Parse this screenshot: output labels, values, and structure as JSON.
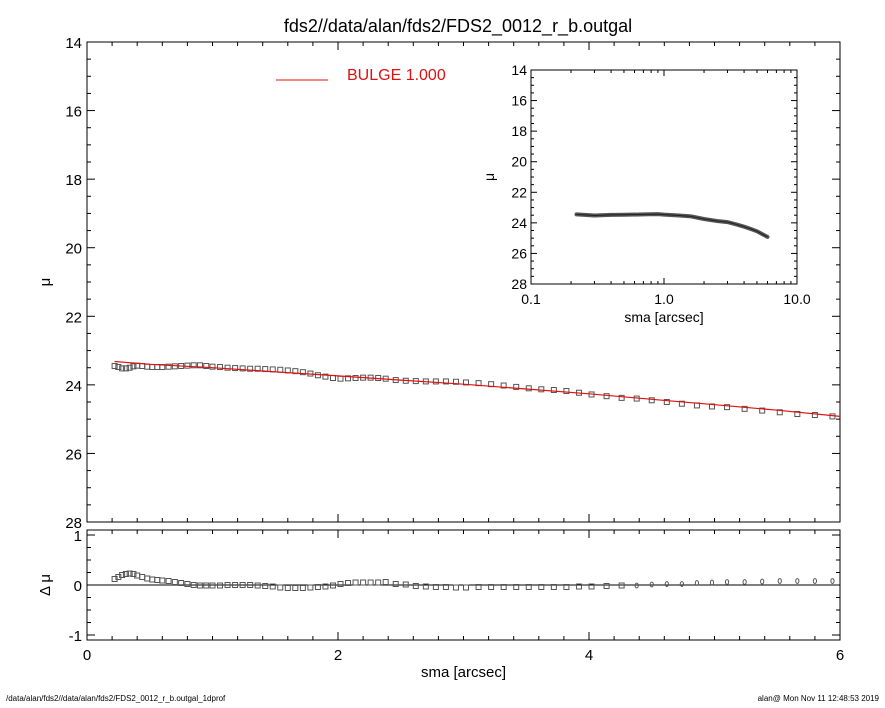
{
  "title": "fds2//data/alan/fds2/FDS2_0012_r_b.outgal",
  "footer": {
    "left": "/data/alan/fds2//data/alan/fds2/FDS2_0012_r_b.outgal_1dprof",
    "right": "alan@  Mon Nov 11 12:48:53 2019"
  },
  "colors": {
    "model": "#e01010",
    "data": "#555555",
    "axis": "#000000"
  },
  "chart_data": [
    {
      "id": "main",
      "type": "scatter",
      "ylabel": "μ",
      "xlim": [
        0,
        6
      ],
      "ylim": [
        28,
        14
      ],
      "y_inverted": true,
      "yticks": [
        14,
        16,
        18,
        20,
        22,
        24,
        26,
        28
      ],
      "xticks": [
        0,
        2,
        4,
        6
      ],
      "legend": {
        "label": "BULGE  1.000",
        "position": "top-left"
      },
      "series": [
        {
          "name": "data",
          "marker": "square",
          "x": [
            0.22,
            0.25,
            0.28,
            0.31,
            0.34,
            0.37,
            0.4,
            0.44,
            0.48,
            0.52,
            0.56,
            0.6,
            0.65,
            0.7,
            0.75,
            0.8,
            0.85,
            0.9,
            0.95,
            1.0,
            1.06,
            1.12,
            1.18,
            1.24,
            1.3,
            1.36,
            1.42,
            1.48,
            1.54,
            1.6,
            1.66,
            1.72,
            1.78,
            1.84,
            1.9,
            1.96,
            2.02,
            2.08,
            2.14,
            2.2,
            2.26,
            2.32,
            2.38,
            2.46,
            2.54,
            2.62,
            2.7,
            2.78,
            2.86,
            2.94,
            3.02,
            3.12,
            3.22,
            3.32,
            3.42,
            3.52,
            3.62,
            3.72,
            3.82,
            3.92,
            4.02,
            4.14,
            4.26,
            4.38,
            4.5,
            4.62,
            4.74,
            4.86,
            4.98,
            5.1,
            5.24,
            5.38,
            5.52,
            5.66,
            5.8,
            5.94
          ],
          "values": [
            23.45,
            23.48,
            23.52,
            23.52,
            23.5,
            23.46,
            23.44,
            23.45,
            23.47,
            23.48,
            23.48,
            23.48,
            23.47,
            23.46,
            23.45,
            23.44,
            23.43,
            23.43,
            23.45,
            23.47,
            23.48,
            23.5,
            23.51,
            23.52,
            23.53,
            23.53,
            23.54,
            23.55,
            23.56,
            23.58,
            23.6,
            23.63,
            23.67,
            23.72,
            23.76,
            23.8,
            23.82,
            23.81,
            23.8,
            23.79,
            23.79,
            23.8,
            23.82,
            23.86,
            23.88,
            23.89,
            23.9,
            23.9,
            23.9,
            23.91,
            23.93,
            23.95,
            23.98,
            24.02,
            24.06,
            24.1,
            24.13,
            24.15,
            24.18,
            24.23,
            24.28,
            24.33,
            24.38,
            24.4,
            24.45,
            24.5,
            24.55,
            24.6,
            24.63,
            24.65,
            24.7,
            24.75,
            24.8,
            24.85,
            24.88,
            24.92
          ]
        },
        {
          "name": "BULGE  1.000",
          "marker": "line",
          "x": [
            0.22,
            0.5,
            1.0,
            1.5,
            2.0,
            2.5,
            3.0,
            3.5,
            4.0,
            4.5,
            5.0,
            5.5,
            6.0
          ],
          "values": [
            23.32,
            23.4,
            23.5,
            23.62,
            23.74,
            23.86,
            23.98,
            24.12,
            24.26,
            24.42,
            24.58,
            24.74,
            24.92
          ]
        }
      ]
    },
    {
      "id": "inset",
      "type": "scatter",
      "xscale": "log",
      "xlabel": "sma [arcsec]",
      "ylabel": "μ",
      "xlim": [
        0.1,
        10.0
      ],
      "ylim": [
        28,
        14
      ],
      "y_inverted": true,
      "xtick_labels": [
        "0.1",
        "1.0",
        "10.0"
      ],
      "yticks": [
        14,
        16,
        18,
        20,
        22,
        24,
        26,
        28
      ],
      "series": [
        {
          "name": "data",
          "x": [
            0.22,
            0.3,
            0.4,
            0.5,
            0.7,
            0.9,
            1.0,
            1.3,
            1.6,
            2.0,
            2.5,
            3.0,
            3.5,
            4.0,
            4.5,
            5.0,
            5.5,
            6.0
          ],
          "values": [
            23.45,
            23.52,
            23.48,
            23.47,
            23.45,
            23.43,
            23.46,
            23.52,
            23.58,
            23.75,
            23.88,
            23.95,
            24.1,
            24.25,
            24.4,
            24.55,
            24.75,
            24.92
          ]
        }
      ]
    },
    {
      "id": "residual",
      "type": "scatter",
      "xlabel": "sma [arcsec]",
      "ylabel": "Δ μ",
      "xlim": [
        0,
        6
      ],
      "ylim": [
        -1.1,
        1.1
      ],
      "yticks": [
        -1,
        0,
        1
      ],
      "xticks": [
        0,
        2,
        4,
        6
      ],
      "series": [
        {
          "name": "residual",
          "x": [
            0.22,
            0.25,
            0.28,
            0.31,
            0.34,
            0.37,
            0.4,
            0.44,
            0.48,
            0.52,
            0.56,
            0.6,
            0.65,
            0.7,
            0.75,
            0.8,
            0.85,
            0.9,
            0.95,
            1.0,
            1.06,
            1.12,
            1.18,
            1.24,
            1.3,
            1.36,
            1.42,
            1.48,
            1.54,
            1.6,
            1.66,
            1.72,
            1.78,
            1.84,
            1.9,
            1.96,
            2.02,
            2.08,
            2.14,
            2.2,
            2.26,
            2.32,
            2.38,
            2.46,
            2.54,
            2.62,
            2.7,
            2.78,
            2.86,
            2.94,
            3.02,
            3.12,
            3.22,
            3.32,
            3.42,
            3.52,
            3.62,
            3.72,
            3.82,
            3.92,
            4.02,
            4.14,
            4.26,
            4.38,
            4.5,
            4.62,
            4.74,
            4.86,
            4.98,
            5.1,
            5.24,
            5.38,
            5.52,
            5.66,
            5.8,
            5.94
          ],
          "values": [
            0.12,
            0.16,
            0.2,
            0.22,
            0.23,
            0.22,
            0.19,
            0.16,
            0.13,
            0.11,
            0.1,
            0.09,
            0.08,
            0.06,
            0.04,
            0.02,
            0.0,
            -0.01,
            -0.01,
            -0.01,
            -0.01,
            0.0,
            0.0,
            0.0,
            0.0,
            -0.01,
            -0.02,
            -0.03,
            -0.05,
            -0.06,
            -0.06,
            -0.06,
            -0.05,
            -0.04,
            -0.03,
            -0.01,
            0.02,
            0.04,
            0.05,
            0.05,
            0.05,
            0.05,
            0.06,
            0.02,
            0.01,
            -0.02,
            -0.03,
            -0.04,
            -0.04,
            -0.05,
            -0.05,
            -0.04,
            -0.04,
            -0.04,
            -0.04,
            -0.04,
            -0.04,
            -0.04,
            -0.04,
            -0.03,
            -0.03,
            -0.02,
            -0.01,
            -0.01,
            0.01,
            0.02,
            0.02,
            0.04,
            0.05,
            0.06,
            0.06,
            0.07,
            0.08,
            0.08,
            0.08,
            0.08
          ]
        }
      ]
    }
  ]
}
